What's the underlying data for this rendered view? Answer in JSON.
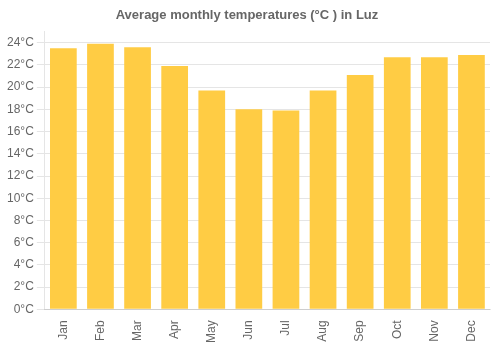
{
  "chart_data": {
    "type": "bar",
    "title": "Average monthly temperatures (°C ) in Luz",
    "categories": [
      "Jan",
      "Feb",
      "Mar",
      "Apr",
      "May",
      "Jun",
      "Jul",
      "Aug",
      "Sep",
      "Oct",
      "Nov",
      "Dec"
    ],
    "values": [
      23.5,
      23.9,
      23.6,
      21.9,
      19.7,
      18.0,
      17.9,
      19.7,
      21.1,
      22.7,
      22.7,
      22.9
    ],
    "color": "#FFCC44",
    "ylim": [
      0,
      25
    ],
    "yticks": [
      {
        "value": 0,
        "label": "0°C"
      },
      {
        "value": 2,
        "label": "2°C"
      },
      {
        "value": 4,
        "label": "4°C"
      },
      {
        "value": 6,
        "label": "6°C"
      },
      {
        "value": 8,
        "label": "8°C"
      },
      {
        "value": 10,
        "label": "10°C"
      },
      {
        "value": 12,
        "label": "12°C"
      },
      {
        "value": 14,
        "label": "14°C"
      },
      {
        "value": 16,
        "label": "16°C"
      },
      {
        "value": 18,
        "label": "18°C"
      },
      {
        "value": 20,
        "label": "20°C"
      },
      {
        "value": 22,
        "label": "22°C"
      },
      {
        "value": 24,
        "label": "24°C"
      }
    ],
    "grid": true
  }
}
